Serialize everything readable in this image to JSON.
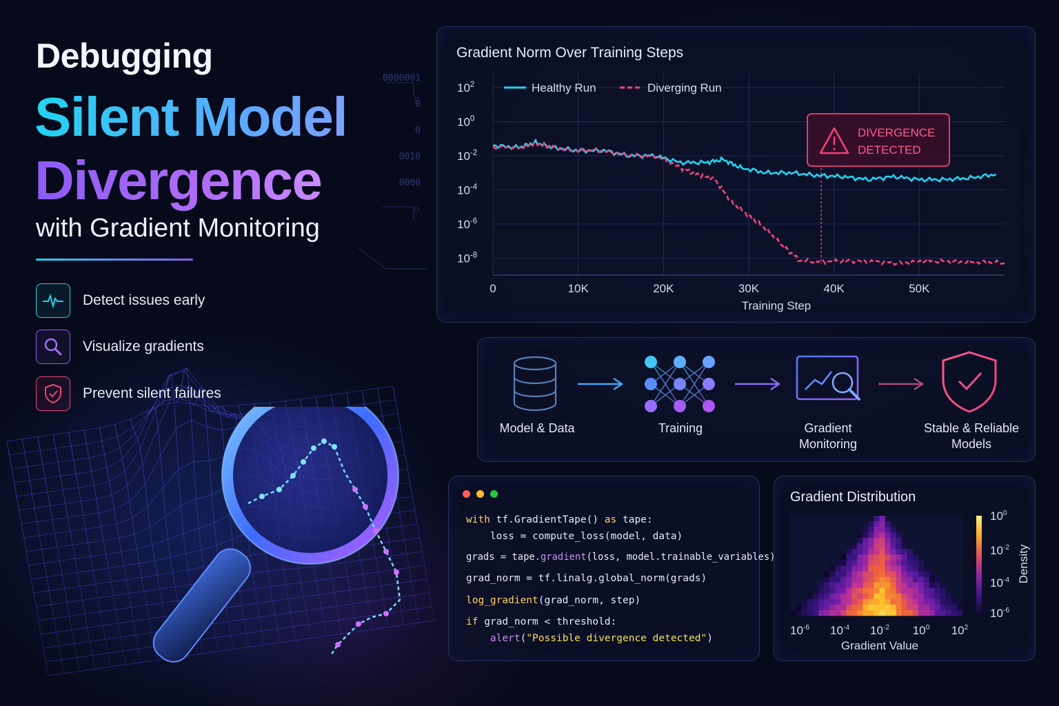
{
  "hero": {
    "line1": "Debugging",
    "line2": "Silent Model",
    "line3": "Divergence",
    "line4": "with Gradient Monitoring"
  },
  "features": [
    {
      "label": "Detect issues early",
      "icon": "heartbeat-icon",
      "color": "#22d3f0"
    },
    {
      "label": "Visualize gradients",
      "icon": "magnifier-icon",
      "color": "#9b5cf6"
    },
    {
      "label": "Prevent silent failures",
      "icon": "shield-icon",
      "color": "#f0437a"
    }
  ],
  "chart_panel": {
    "title": "Gradient Norm Over Training Steps",
    "alert": {
      "line1": "DIVERGENCE",
      "line2": "DETECTED"
    }
  },
  "chart_data": [
    {
      "type": "line",
      "title": "Gradient Norm Over Training Steps",
      "xlabel": "Training Step",
      "ylabel": "",
      "x_scale": "linear",
      "y_scale": "log",
      "xlim": [
        0,
        60000
      ],
      "ylim": [
        1e-09,
        100
      ],
      "x_ticks": [
        0,
        10000,
        20000,
        30000,
        40000,
        50000
      ],
      "x_tick_labels": [
        "0",
        "10K",
        "20K",
        "30K",
        "40K",
        "50K"
      ],
      "y_ticks": [
        1e-08,
        1e-06,
        0.0001,
        0.01,
        1,
        100
      ],
      "y_tick_labels": [
        {
          "base": "10",
          "exp": "-8"
        },
        {
          "base": "10",
          "exp": "-6"
        },
        {
          "base": "10",
          "exp": "-4"
        },
        {
          "base": "10",
          "exp": "-2"
        },
        {
          "base": "10",
          "exp": "0"
        },
        {
          "base": "10",
          "exp": "2"
        }
      ],
      "legend": "top-left",
      "grid": true,
      "annotation": {
        "text": "DIVERGENCE DETECTED",
        "x": 38500
      },
      "series": [
        {
          "name": "Healthy Run",
          "color": "#22d3f0",
          "style": "solid",
          "x": [
            0,
            3000,
            5000,
            7000,
            10000,
            13000,
            16000,
            19000,
            22000,
            25000,
            27000,
            29000,
            32000,
            35000,
            38000,
            41000,
            44000,
            47000,
            50000,
            53000,
            56000,
            59000
          ],
          "y": [
            0.04,
            0.03,
            0.06,
            0.03,
            0.02,
            0.02,
            0.01,
            0.01,
            0.004,
            0.004,
            0.006,
            0.002,
            0.001,
            0.001,
            0.0007,
            0.0006,
            0.0004,
            0.0006,
            0.0004,
            0.0004,
            0.0005,
            0.0008
          ]
        },
        {
          "name": "Diverging Run",
          "color": "#f0437a",
          "style": "dashed",
          "x": [
            0,
            3000,
            5000,
            7000,
            10000,
            13000,
            16000,
            19000,
            22000,
            24000,
            26000,
            28000,
            30000,
            32000,
            34000,
            36000,
            39000,
            42000,
            45000,
            48000,
            51000,
            54000,
            57000,
            60000
          ],
          "y": [
            0.03,
            0.03,
            0.05,
            0.03,
            0.02,
            0.02,
            0.01,
            0.01,
            0.002,
            0.0008,
            0.0004,
            2e-05,
            3e-06,
            5e-07,
            5e-08,
            7e-09,
            6e-09,
            7e-09,
            6e-09,
            5e-09,
            7e-09,
            6e-09,
            6e-09,
            5e-09
          ]
        }
      ]
    },
    {
      "type": "heatmap",
      "title": "Gradient Distribution",
      "xlabel": "Gradient Value",
      "ylabel": "",
      "x_scale": "log",
      "xlim": [
        1e-06,
        100
      ],
      "x_tick_labels": [
        {
          "base": "10",
          "exp": "-6"
        },
        {
          "base": "10",
          "exp": "-4"
        },
        {
          "base": "10",
          "exp": "-2"
        },
        {
          "base": "10",
          "exp": "0"
        },
        {
          "base": "10",
          "exp": "2"
        }
      ],
      "colorbar": {
        "label": "Density",
        "tick_labels": [
          {
            "base": "10",
            "exp": "0"
          },
          {
            "base": "10",
            "exp": "-2"
          },
          {
            "base": "10",
            "exp": "-4"
          },
          {
            "base": "10",
            "exp": "-6"
          }
        ]
      },
      "peak_x": 0.01
    }
  ],
  "pipeline": [
    {
      "label1": "Model & Data",
      "label2": "",
      "icon": "database-icon"
    },
    {
      "label1": "Training",
      "label2": "",
      "icon": "neural-network-icon"
    },
    {
      "label1": "Gradient",
      "label2": "Monitoring",
      "icon": "monitor-magnifier-icon"
    },
    {
      "label1": "Stable & Reliable",
      "label2": "Models",
      "icon": "shield-check-icon"
    }
  ],
  "code": {
    "lines": [
      "with tf.GradientTape() as tape:",
      "    loss = compute_loss(model, data)",
      "grads = tape.gradient(loss, model.trainable_variables)",
      "grad_norm = tf.linalg.global_norm(grads)",
      "log_gradient(grad_norm, step)",
      "if grad_norm < threshold:",
      "    alert(\"Possible divergence detected\")"
    ]
  },
  "background_digits": [
    "0000001",
    "0",
    "0",
    "0010",
    "0000"
  ]
}
